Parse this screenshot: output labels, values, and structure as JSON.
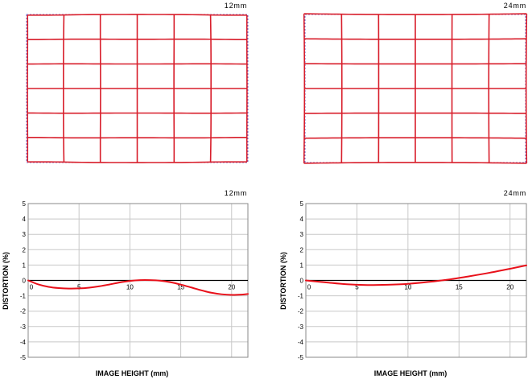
{
  "colors": {
    "curve": "#e8101a",
    "grid_pattern": "#d81e2b",
    "ideal_pattern": "#6b6bd6",
    "plot_grid": "#c8c8c8",
    "axis": "#000000"
  },
  "panels": [
    {
      "focal": "12mm"
    },
    {
      "focal": "24mm"
    }
  ],
  "chart_data": [
    {
      "type": "line",
      "title": "12mm",
      "xlabel": "IMAGE HEIGHT (mm)",
      "ylabel": "DISTORTION (%)",
      "xlim": [
        0,
        21.6
      ],
      "ylim": [
        -5,
        5
      ],
      "x_ticks": [
        0,
        5,
        10,
        15,
        20
      ],
      "y_ticks": [
        5,
        4,
        3,
        2,
        1,
        0,
        -1,
        -2,
        -3,
        -4,
        -5
      ],
      "grid": true,
      "series": [
        {
          "x": [
            0,
            1,
            2,
            3,
            4,
            5,
            6,
            7,
            8,
            9,
            10,
            11,
            12,
            13,
            14,
            15,
            16,
            17,
            18,
            19,
            20,
            21,
            21.6
          ],
          "values": [
            0,
            -0.26,
            -0.42,
            -0.5,
            -0.53,
            -0.52,
            -0.47,
            -0.38,
            -0.26,
            -0.13,
            -0.03,
            0.02,
            0.02,
            -0.02,
            -0.12,
            -0.27,
            -0.45,
            -0.64,
            -0.8,
            -0.9,
            -0.94,
            -0.92,
            -0.88
          ]
        }
      ]
    },
    {
      "type": "line",
      "title": "24mm",
      "xlabel": "IMAGE HEIGHT (mm)",
      "ylabel": "DISTORTION (%)",
      "xlim": [
        0,
        21.6
      ],
      "ylim": [
        -5,
        5
      ],
      "x_ticks": [
        0,
        5,
        10,
        15,
        20
      ],
      "y_ticks": [
        5,
        4,
        3,
        2,
        1,
        0,
        -1,
        -2,
        -3,
        -4,
        -5
      ],
      "grid": true,
      "series": [
        {
          "x": [
            0,
            2,
            4,
            6,
            8,
            10,
            12,
            14,
            16,
            18,
            20,
            21.6
          ],
          "values": [
            0,
            -0.13,
            -0.25,
            -0.3,
            -0.28,
            -0.22,
            -0.1,
            0.06,
            0.27,
            0.5,
            0.76,
            0.98
          ]
        }
      ]
    }
  ]
}
